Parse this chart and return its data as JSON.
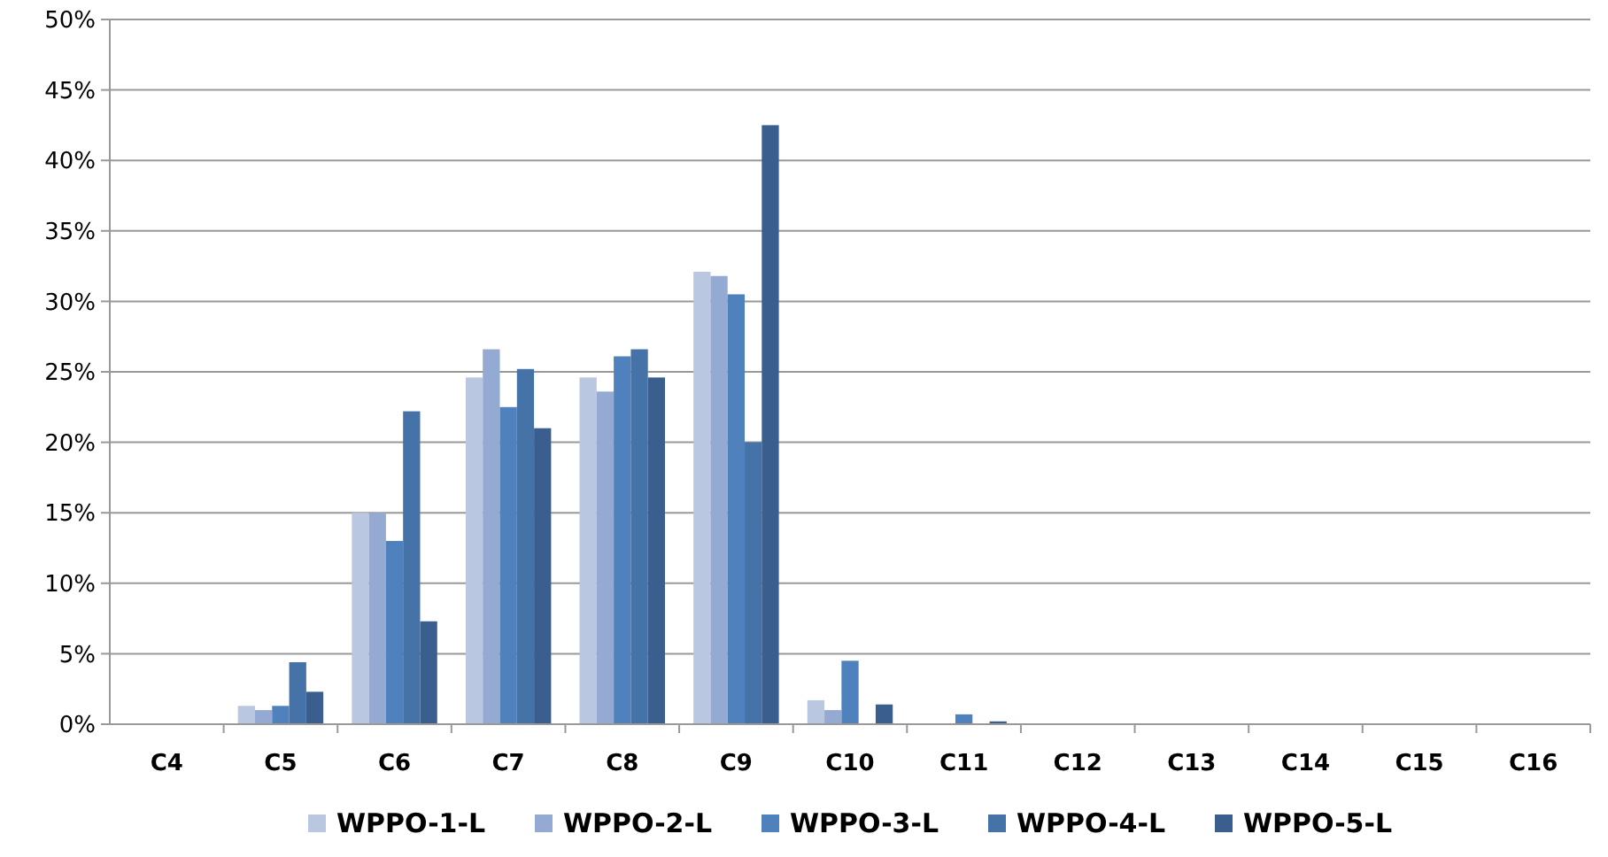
{
  "chart_data": {
    "type": "bar",
    "categories": [
      "C4",
      "C5",
      "C6",
      "C7",
      "C8",
      "C9",
      "C10",
      "C11",
      "C12",
      "C13",
      "C14",
      "C15",
      "C16"
    ],
    "series": [
      {
        "name": "WPPO-1-L",
        "color": "#b9c7e0",
        "values": [
          0,
          1.3,
          15,
          24.6,
          24.6,
          32.1,
          1.7,
          0,
          0,
          0,
          0,
          0,
          0
        ]
      },
      {
        "name": "WPPO-2-L",
        "color": "#95aad2",
        "values": [
          0,
          1.0,
          15,
          26.6,
          23.6,
          31.8,
          1.0,
          0,
          0,
          0,
          0,
          0,
          0
        ]
      },
      {
        "name": "WPPO-3-L",
        "color": "#4f81bd",
        "values": [
          0,
          1.3,
          13,
          22.5,
          26.1,
          30.5,
          4.5,
          0.7,
          0,
          0,
          0,
          0,
          0
        ]
      },
      {
        "name": "WPPO-4-L",
        "color": "#4573a8",
        "values": [
          0,
          4.4,
          22.2,
          25.2,
          26.6,
          20,
          0,
          0,
          0,
          0,
          0,
          0,
          0
        ]
      },
      {
        "name": "WPPO-5-L",
        "color": "#3a5f8f",
        "values": [
          0,
          2.3,
          7.3,
          21,
          24.6,
          42.5,
          1.4,
          0.2,
          0,
          0,
          0,
          0,
          0
        ]
      }
    ],
    "ylim": [
      0,
      50
    ],
    "yticks": [
      {
        "value": 0,
        "label": "0%"
      },
      {
        "value": 5,
        "label": "5%"
      },
      {
        "value": 10,
        "label": "10%"
      },
      {
        "value": 15,
        "label": "15%"
      },
      {
        "value": 20,
        "label": "20%"
      },
      {
        "value": 25,
        "label": "25%"
      },
      {
        "value": 30,
        "label": "30%"
      },
      {
        "value": 35,
        "label": "35%"
      },
      {
        "value": 40,
        "label": "40%"
      },
      {
        "value": 45,
        "label": "45%"
      },
      {
        "value": 50,
        "label": "50%"
      }
    ],
    "grid": "y",
    "legend": "bottom"
  }
}
